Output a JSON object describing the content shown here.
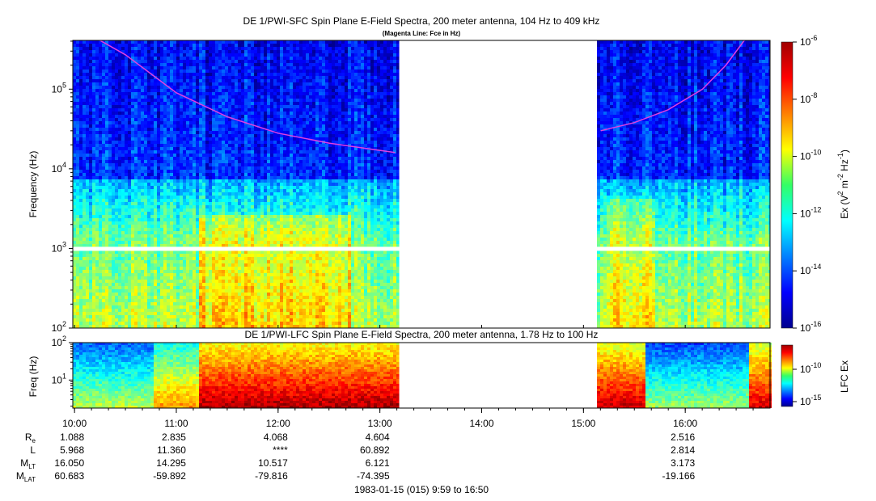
{
  "chart_data": [
    {
      "type": "heatmap",
      "title": "DE 1/PWI-SFC  Spin Plane E-Field Spectra, 200 meter antenna, 104 Hz to 409 kHz",
      "subtitle": "(Magenta Line: Fce in Hz)",
      "ylabel": "Frequency (Hz)",
      "y_scale": "log",
      "ylim": [
        100,
        409000
      ],
      "y_ticks": [
        {
          "value": 100,
          "base": "10",
          "exp": "2"
        },
        {
          "value": 1000,
          "base": "10",
          "exp": "3"
        },
        {
          "value": 10000,
          "base": "10",
          "exp": "4"
        },
        {
          "value": 100000,
          "base": "10",
          "exp": "5"
        }
      ],
      "colorbar": {
        "label": "Ex (V",
        "label_parts": [
          "Ex (V",
          "2",
          " m",
          "-2",
          " Hz",
          "-1",
          ")"
        ],
        "scale": "log",
        "range": [
          1e-16,
          1e-06
        ],
        "ticks": [
          {
            "value": 1e-06,
            "base": "10",
            "exp": "-6"
          },
          {
            "value": 1e-08,
            "base": "10",
            "exp": "-8"
          },
          {
            "value": 1e-10,
            "base": "10",
            "exp": "-10"
          },
          {
            "value": 1e-12,
            "base": "10",
            "exp": "-12"
          },
          {
            "value": 1e-14,
            "base": "10",
            "exp": "-14"
          },
          {
            "value": 1e-16,
            "base": "10",
            "exp": "-16"
          }
        ]
      },
      "data_gaps_hours": [
        [
          13.19,
          15.13
        ]
      ],
      "series": [
        {
          "name": "Fce",
          "color": "#e040e0",
          "x": [
            10.25,
            10.5,
            11.0,
            11.5,
            12.0,
            12.5,
            13.0,
            13.15
          ],
          "y": [
            409000,
            270000,
            90000,
            45000,
            28000,
            21000,
            17000,
            16000
          ]
        },
        {
          "name": "Fce",
          "color": "#e040e0",
          "x": [
            15.17,
            15.5,
            15.83,
            16.17,
            16.4,
            16.58
          ],
          "y": [
            30000,
            38000,
            55000,
            100000,
            200000,
            409000
          ]
        }
      ]
    },
    {
      "type": "heatmap",
      "title": "DE 1/PWI-LFC  Spin Plane E-Field Spectra, 200 meter antenna, 1.78 Hz to 100 Hz",
      "ylabel": "Freq (Hz)",
      "y_scale": "log",
      "ylim": [
        1.78,
        100
      ],
      "y_ticks": [
        {
          "value": 100,
          "base": "10",
          "exp": "2"
        },
        {
          "value": 10,
          "base": "10",
          "exp": "1"
        }
      ],
      "colorbar": {
        "label": "LFC Ex",
        "scale": "log",
        "ticks": [
          {
            "value": 1e-10,
            "base": "10",
            "exp": "-10"
          },
          {
            "value": 1e-15,
            "base": "10",
            "exp": "-15"
          }
        ]
      },
      "data_gaps_hours": [
        [
          13.19,
          15.13
        ]
      ]
    }
  ],
  "x_axis": {
    "start_hour": 9.983,
    "end_hour": 16.833,
    "tick_hours": [
      10,
      11,
      12,
      13,
      14,
      15,
      16
    ],
    "tick_labels": [
      "10:00",
      "11:00",
      "12:00",
      "13:00",
      "14:00",
      "15:00",
      "16:00"
    ]
  },
  "ephemeris": {
    "rows": [
      {
        "label": "R",
        "sub": "e",
        "values": [
          "1.088",
          "2.835",
          "4.068",
          "4.604",
          "",
          "",
          "2.516"
        ]
      },
      {
        "label": "L",
        "sub": "",
        "values": [
          "5.968",
          "11.360",
          "****",
          "60.892",
          "",
          "",
          "2.814"
        ]
      },
      {
        "label": "M",
        "sub": "LT",
        "values": [
          "16.050",
          "14.295",
          "10.517",
          "6.121",
          "",
          "",
          "3.173"
        ]
      },
      {
        "label": "M",
        "sub": "LAT",
        "values": [
          "60.683",
          "-59.892",
          "-79.816",
          "-74.395",
          "",
          "",
          "-19.166"
        ]
      }
    ]
  },
  "footer": {
    "date_range": "1983-01-15 (015) 9:59 to 16:50"
  }
}
